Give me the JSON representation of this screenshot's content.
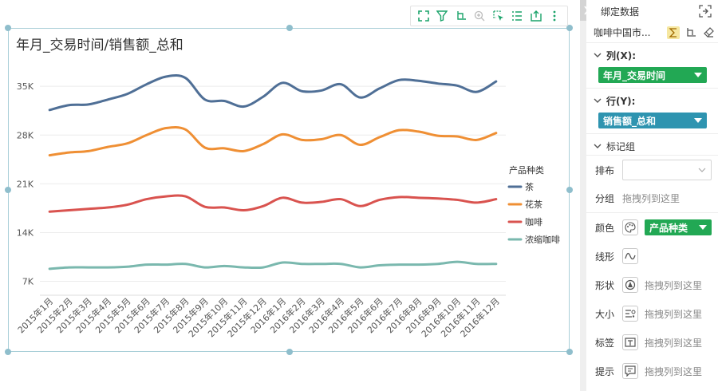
{
  "chart_data": {
    "type": "line",
    "title": "年月_交易时间/销售额_总和",
    "categories": [
      "2015年1月",
      "2015年2月",
      "2015年3月",
      "2015年4月",
      "2015年5月",
      "2015年6月",
      "2015年7月",
      "2015年8月",
      "2015年9月",
      "2015年10月",
      "2015年11月",
      "2015年12月",
      "2016年1月",
      "2016年2月",
      "2016年3月",
      "2016年4月",
      "2016年5月",
      "2016年6月",
      "2016年7月",
      "2016年8月",
      "2016年9月",
      "2016年10月",
      "2016年11月",
      "2016年12月"
    ],
    "y_ticks": [
      "7K",
      "14K",
      "21K",
      "28K",
      "35K"
    ],
    "ylim": [
      5000,
      38000
    ],
    "legend_title": "产品种类",
    "legend_position": "right",
    "grid": true,
    "series": [
      {
        "name": "茶",
        "color": "#4f6f96",
        "values": [
          31600,
          32300,
          32400,
          33100,
          33900,
          35300,
          36400,
          36200,
          33100,
          32900,
          32100,
          33500,
          35500,
          34300,
          34400,
          35300,
          33400,
          34700,
          35900,
          35800,
          35400,
          35100,
          34200,
          35700
        ]
      },
      {
        "name": "花茶",
        "color": "#ef8f34",
        "values": [
          25100,
          25500,
          25700,
          26300,
          26800,
          28000,
          29000,
          28800,
          26200,
          26100,
          25700,
          26700,
          28100,
          27300,
          27400,
          28000,
          26600,
          27700,
          28700,
          28500,
          27900,
          27800,
          27300,
          28300
        ]
      },
      {
        "name": "咖啡",
        "color": "#d9534f",
        "values": [
          17000,
          17200,
          17400,
          17600,
          18000,
          18800,
          19200,
          19200,
          17700,
          17600,
          17200,
          17800,
          19000,
          18300,
          18400,
          18800,
          17800,
          18700,
          19100,
          19000,
          18900,
          18700,
          18300,
          18800
        ]
      },
      {
        "name": "浓缩咖啡",
        "color": "#7ab8ae",
        "values": [
          8800,
          9000,
          9000,
          9000,
          9100,
          9400,
          9400,
          9500,
          9000,
          9200,
          9000,
          9000,
          9700,
          9500,
          9500,
          9500,
          9000,
          9300,
          9400,
          9400,
          9500,
          9800,
          9500,
          9500
        ]
      }
    ]
  },
  "panel": {
    "title": "绑定数据",
    "datasource": "咖啡中国市...",
    "columns_label": "列(X):",
    "columns_field": "年月_交易时间",
    "rows_label": "行(Y):",
    "rows_field": "销售额_总和",
    "marks_label": "标记组",
    "layout_label": "排布",
    "group_label": "分组",
    "group_placeholder": "拖拽列到这里",
    "color_label": "颜色",
    "color_field": "产品种类",
    "line_label": "线形",
    "shape_label": "形状",
    "shape_placeholder": "拖拽列到这里",
    "size_label": "大小",
    "size_placeholder": "拖拽列到这里",
    "tag_label": "标签",
    "tag_placeholder": "拖拽列到这里",
    "tip_label": "提示",
    "tip_placeholder": "拖拽列到这里"
  }
}
